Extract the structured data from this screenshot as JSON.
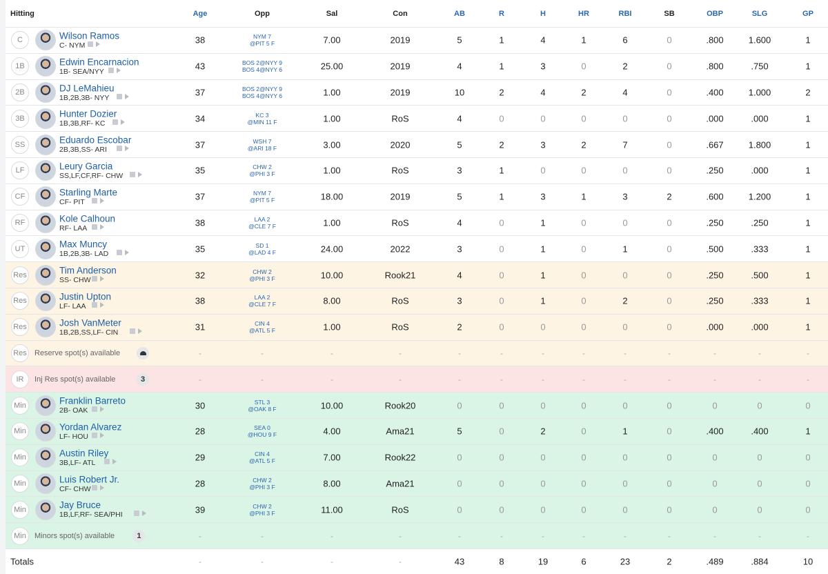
{
  "header": [
    "Hitting",
    "Age",
    "Opp",
    "Sal",
    "Con",
    "AB",
    "R",
    "H",
    "HR",
    "RBI",
    "SB",
    "OBP",
    "SLG",
    "GP"
  ],
  "rows": [
    {
      "pos": "C",
      "name": "Wilson Ramos",
      "info": "C- NYM",
      "age": "38",
      "opp": [
        "NYM 7",
        "@PIT 5 F"
      ],
      "sal": "7.00",
      "con": "2019",
      "stats": [
        "5",
        "1",
        "4",
        "1",
        "6",
        "0",
        ".800",
        "1.600",
        "1"
      ]
    },
    {
      "pos": "1B",
      "name": "Edwin Encarnacion",
      "info": "1B- SEA/NYY",
      "age": "43",
      "opp": [
        "BOS 2@NYY 9",
        "BOS 4@NYY 6"
      ],
      "sal": "25.00",
      "con": "2019",
      "stats": [
        "4",
        "1",
        "3",
        "0",
        "2",
        "0",
        ".800",
        ".750",
        "1"
      ]
    },
    {
      "pos": "2B",
      "name": "DJ LeMahieu",
      "info": "1B,2B,3B- NYY",
      "age": "37",
      "opp": [
        "BOS 2@NYY 9",
        "BOS 4@NYY 6"
      ],
      "sal": "1.00",
      "con": "2019",
      "stats": [
        "10",
        "2",
        "4",
        "2",
        "4",
        "0",
        ".400",
        "1.000",
        "2"
      ]
    },
    {
      "pos": "3B",
      "name": "Hunter Dozier",
      "info": "1B,3B,RF- KC",
      "age": "34",
      "opp": [
        "KC 3",
        "@MIN 11 F"
      ],
      "sal": "1.00",
      "con": "RoS",
      "stats": [
        "4",
        "0",
        "0",
        "0",
        "0",
        "0",
        ".000",
        ".000",
        "1"
      ]
    },
    {
      "pos": "SS",
      "name": "Eduardo Escobar",
      "info": "2B,3B,SS- ARI",
      "age": "37",
      "opp": [
        "WSH 7",
        "@ARI 18 F"
      ],
      "sal": "3.00",
      "con": "2020",
      "stats": [
        "5",
        "2",
        "3",
        "2",
        "7",
        "0",
        ".667",
        "1.800",
        "1"
      ]
    },
    {
      "pos": "LF",
      "name": "Leury Garcia",
      "info": "SS,LF,CF,RF- CHW",
      "age": "35",
      "opp": [
        "CHW 2",
        "@PHI 3 F"
      ],
      "sal": "1.00",
      "con": "RoS",
      "stats": [
        "3",
        "1",
        "0",
        "0",
        "0",
        "0",
        ".250",
        ".000",
        "1"
      ]
    },
    {
      "pos": "CF",
      "name": "Starling Marte",
      "info": "CF- PIT",
      "age": "37",
      "opp": [
        "NYM 7",
        "@PIT 5 F"
      ],
      "sal": "18.00",
      "con": "2019",
      "stats": [
        "5",
        "1",
        "3",
        "1",
        "3",
        "2",
        ".600",
        "1.200",
        "1"
      ]
    },
    {
      "pos": "RF",
      "name": "Kole Calhoun",
      "info": "RF- LAA",
      "age": "38",
      "opp": [
        "LAA 2",
        "@CLE 7 F"
      ],
      "sal": "1.00",
      "con": "RoS",
      "stats": [
        "4",
        "0",
        "1",
        "0",
        "0",
        "0",
        ".250",
        ".250",
        "1"
      ]
    },
    {
      "pos": "UT",
      "name": "Max Muncy",
      "info": "1B,2B,3B- LAD",
      "age": "35",
      "opp": [
        "SD 1",
        "@LAD 4 F"
      ],
      "sal": "24.00",
      "con": "2022",
      "stats": [
        "3",
        "0",
        "1",
        "0",
        "1",
        "0",
        ".500",
        ".333",
        "1"
      ]
    },
    {
      "pos": "Res",
      "name": "Tim Anderson",
      "info": "SS- CHW",
      "age": "32",
      "opp": [
        "CHW 2",
        "@PHI 3 F"
      ],
      "sal": "10.00",
      "con": "Rook21",
      "stats": [
        "4",
        "0",
        "1",
        "0",
        "0",
        "0",
        ".250",
        ".500",
        "1"
      ]
    },
    {
      "pos": "Res",
      "name": "Justin Upton",
      "info": "LF- LAA",
      "age": "38",
      "opp": [
        "LAA 2",
        "@CLE 7 F"
      ],
      "sal": "8.00",
      "con": "RoS",
      "stats": [
        "3",
        "0",
        "1",
        "0",
        "2",
        "0",
        ".250",
        ".333",
        "1"
      ]
    },
    {
      "pos": "Res",
      "name": "Josh VanMeter",
      "info": "1B,2B,SS,LF- CIN",
      "age": "31",
      "opp": [
        "CIN 4",
        "@ATL 5 F"
      ],
      "sal": "1.00",
      "con": "RoS",
      "stats": [
        "2",
        "0",
        "0",
        "0",
        "0",
        "0",
        ".000",
        ".000",
        "1"
      ]
    },
    {
      "pos": "Res",
      "text": "Reserve spot(s) available",
      "cells": [
        "-",
        "-",
        "-",
        "-",
        "-",
        "-",
        "-",
        "-",
        "-",
        "-",
        "-",
        "-",
        "-"
      ]
    },
    {
      "pos": "IR",
      "text": "Inj Res spot(s) available",
      "badge": "3",
      "cells": [
        "-",
        "-",
        "-",
        "-",
        "-",
        "-",
        "-",
        "-",
        "-",
        "-",
        "-",
        "-",
        "-"
      ]
    },
    {
      "pos": "Min",
      "name": "Franklin Barreto",
      "info": "2B- OAK",
      "age": "30",
      "opp": [
        "STL 3",
        "@OAK 8 F"
      ],
      "sal": "10.00",
      "con": "Rook20",
      "stats": [
        "0",
        "0",
        "0",
        "0",
        "0",
        "0",
        "0",
        "0",
        "0"
      ]
    },
    {
      "pos": "Min",
      "name": "Yordan Alvarez",
      "info": "LF- HOU",
      "age": "28",
      "opp": [
        "SEA 0",
        "@HOU 9 F"
      ],
      "sal": "4.00",
      "con": "Ama21",
      "stats": [
        "5",
        "0",
        "2",
        "0",
        "1",
        "0",
        ".400",
        ".400",
        "1"
      ]
    },
    {
      "pos": "Min",
      "name": "Austin Riley",
      "info": "3B,LF- ATL",
      "age": "29",
      "opp": [
        "CIN 4",
        "@ATL 5 F"
      ],
      "sal": "7.00",
      "con": "Rook22",
      "stats": [
        "0",
        "0",
        "0",
        "0",
        "0",
        "0",
        "0",
        "0",
        "0"
      ]
    },
    {
      "pos": "Min",
      "name": "Luis Robert Jr.",
      "info": "CF- CHW",
      "age": "28",
      "opp": [
        "CHW 2",
        "@PHI 3 F"
      ],
      "sal": "8.00",
      "con": "Ama21",
      "stats": [
        "0",
        "0",
        "0",
        "0",
        "0",
        "0",
        "0",
        "0",
        "0"
      ]
    },
    {
      "pos": "Min",
      "name": "Jay Bruce",
      "info": "1B,LF,RF- SEA/PHI",
      "age": "39",
      "opp": [
        "CHW 2",
        "@PHI 3 F"
      ],
      "sal": "11.00",
      "con": "RoS",
      "stats": [
        "0",
        "0",
        "0",
        "0",
        "0",
        "0",
        "0",
        "0",
        "0"
      ]
    },
    {
      "pos": "Min",
      "text": "Minors spot(s) available",
      "badge": "1",
      "cells": [
        "-",
        "-",
        "-",
        "-",
        "-",
        "-",
        "-",
        "-",
        "-",
        "-",
        "-",
        "-",
        "-"
      ]
    }
  ],
  "totals": {
    "label": "Totals",
    "cells": [
      "-",
      "-",
      "-",
      "-",
      "43",
      "8",
      "19",
      "6",
      "23",
      "2",
      ".489",
      ".884",
      "10"
    ]
  }
}
